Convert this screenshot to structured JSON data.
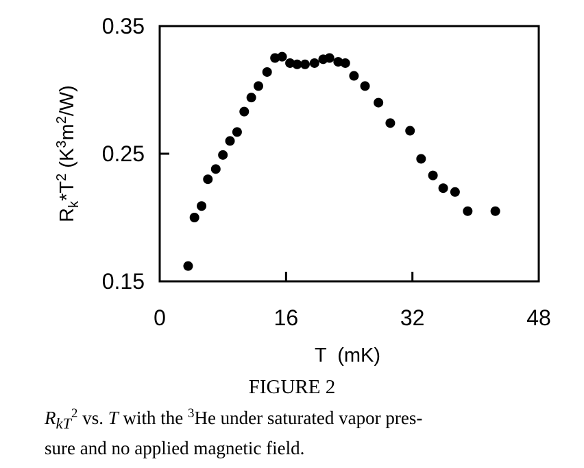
{
  "chart_data": {
    "type": "scatter",
    "xlabel": "T  (mK)",
    "ylabel_parts": [
      "R",
      "k",
      "*T",
      "2",
      "  (K",
      "3",
      "m",
      "2",
      "/W)"
    ],
    "xlim": [
      0,
      48
    ],
    "ylim": [
      0.15,
      0.35
    ],
    "xticks": [
      0,
      16,
      32,
      48
    ],
    "xtick_labels": [
      "0",
      "16",
      "32",
      "48"
    ],
    "yticks": [
      0.15,
      0.25,
      0.35
    ],
    "ytick_labels": [
      "0.15",
      "0.25",
      "0.35"
    ],
    "grid": false,
    "marker_color": "#000000",
    "series": [
      {
        "x": [
          3.6,
          4.4,
          5.3,
          6.1,
          7.1,
          8.0,
          8.9,
          9.8,
          10.7,
          11.6,
          12.5,
          13.6,
          14.6,
          15.5,
          16.5,
          17.4,
          18.4,
          19.6,
          20.7,
          21.5,
          22.6,
          23.5,
          24.6,
          26.0,
          27.7,
          29.2,
          31.7,
          33.1,
          34.6,
          35.9,
          37.4,
          39.0,
          42.5
        ],
        "y": [
          0.162,
          0.2,
          0.209,
          0.23,
          0.238,
          0.249,
          0.26,
          0.267,
          0.283,
          0.294,
          0.303,
          0.314,
          0.325,
          0.326,
          0.321,
          0.32,
          0.32,
          0.321,
          0.324,
          0.325,
          0.322,
          0.321,
          0.311,
          0.303,
          0.29,
          0.274,
          0.268,
          0.246,
          0.233,
          0.223,
          0.22,
          0.205,
          0.205
        ]
      }
    ]
  },
  "caption": {
    "figure_label": "FIGURE 2",
    "lines": [
      "R_kT^2 vs. T with the ^3He under saturated vapor pres-",
      "sure and no applied magnetic field."
    ]
  }
}
